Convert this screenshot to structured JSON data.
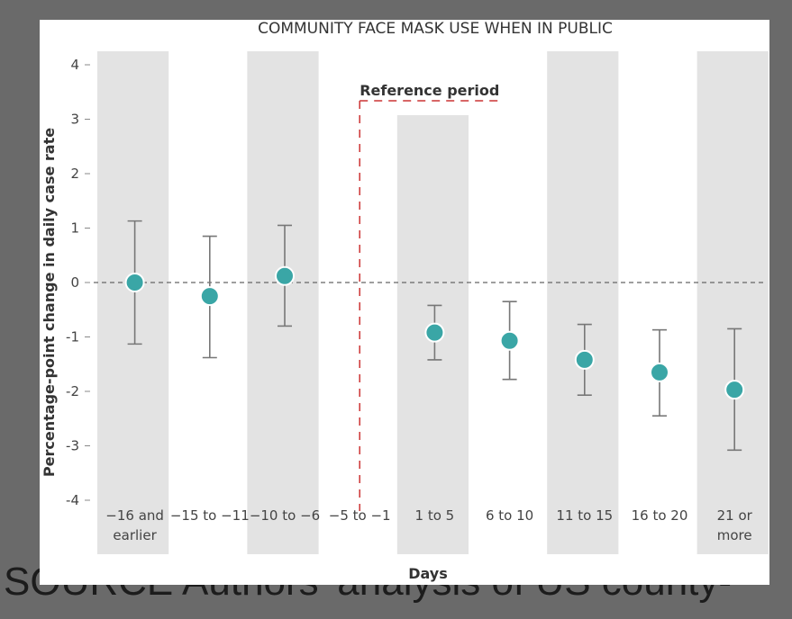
{
  "background": {
    "source_text": "SOURCE Authors' analysis of US county-"
  },
  "chart_data": {
    "type": "scatter",
    "title": "COMMUNITY FACE MASK USE WHEN IN PUBLIC",
    "xlabel": "Days",
    "ylabel": "Percentage-point change in daily case rate",
    "ylim": [
      -4,
      4
    ],
    "yticks": [
      4,
      3,
      2,
      1,
      0,
      -1,
      -2,
      -3,
      -4
    ],
    "ytick_labels": [
      "4",
      "3",
      "2",
      "1",
      "0",
      "-1",
      "-2",
      "-3",
      "-4"
    ],
    "categories": [
      "-16 and earlier",
      "-15 to -11",
      "-10 to -6",
      "-5 to -1",
      "1 to 5",
      "6 to 10",
      "11 to 15",
      "16 to 20",
      "21 or more"
    ],
    "category_lines": [
      [
        "−16 and",
        "earlier"
      ],
      [
        "−15 to −11"
      ],
      [
        "−10 to −6"
      ],
      [
        "−5 to −1"
      ],
      [
        "1 to 5"
      ],
      [
        "6 to 10"
      ],
      [
        "11 to 15"
      ],
      [
        "16 to 20"
      ],
      [
        "21 or",
        "more"
      ]
    ],
    "series": [
      {
        "values": [
          0.0,
          -0.25,
          0.12,
          null,
          -0.92,
          -1.07,
          -1.42,
          -1.65,
          -1.97
        ],
        "lower": [
          -1.13,
          -1.38,
          -0.8,
          null,
          -1.42,
          -1.78,
          -2.07,
          -2.45,
          -3.08
        ],
        "upper": [
          1.13,
          0.85,
          1.05,
          null,
          -0.42,
          -0.35,
          -0.77,
          -0.87,
          -0.85
        ]
      }
    ],
    "reference_period": {
      "label": "Reference period",
      "category": "-5 to -1"
    },
    "shaded_columns": [
      "-16 and earlier",
      "-10 to -6",
      "1 to 5",
      "11 to 15",
      "21 or more"
    ],
    "zero_line": true,
    "grid": false,
    "colors": {
      "marker": "#3aa6a6",
      "error_bar": "#777777",
      "shade": "#e3e3e3",
      "reference": "#cc3333",
      "zero_line": "#666666",
      "page_background": "#6a6a6a"
    }
  }
}
